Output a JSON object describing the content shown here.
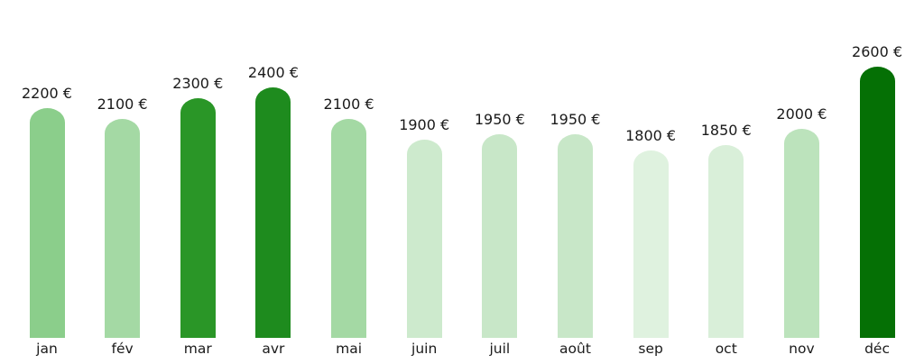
{
  "chart_data": {
    "type": "bar",
    "title": "",
    "xlabel": "",
    "ylabel": "",
    "unit": "€",
    "categories": [
      "jan",
      "fév",
      "mar",
      "avr",
      "mai",
      "juin",
      "juil",
      "août",
      "sep",
      "oct",
      "nov",
      "déc"
    ],
    "values": [
      2200,
      2100,
      2300,
      2400,
      2100,
      1900,
      1950,
      1950,
      1800,
      1850,
      2000,
      2600
    ],
    "value_labels": [
      "2200 €",
      "2100 €",
      "2300 €",
      "2400 €",
      "2100 €",
      "1900 €",
      "1950 €",
      "1950 €",
      "1800 €",
      "1850 €",
      "2000 €",
      "2600 €"
    ],
    "bar_colors": [
      "#8bce8b",
      "#a4d9a4",
      "#2a9627",
      "#1e8b1e",
      "#a4d9a4",
      "#cdeacd",
      "#c8e7c8",
      "#c8e7c8",
      "#dff2df",
      "#d9efd9",
      "#bce3bc",
      "#057005"
    ],
    "text_color": "#1a1a1a",
    "background_color": "#ffffff",
    "ylim": [
      0,
      2700
    ],
    "grid": false,
    "axes_visible": false,
    "legend_position": "none",
    "bar_style": "rounded-top"
  }
}
